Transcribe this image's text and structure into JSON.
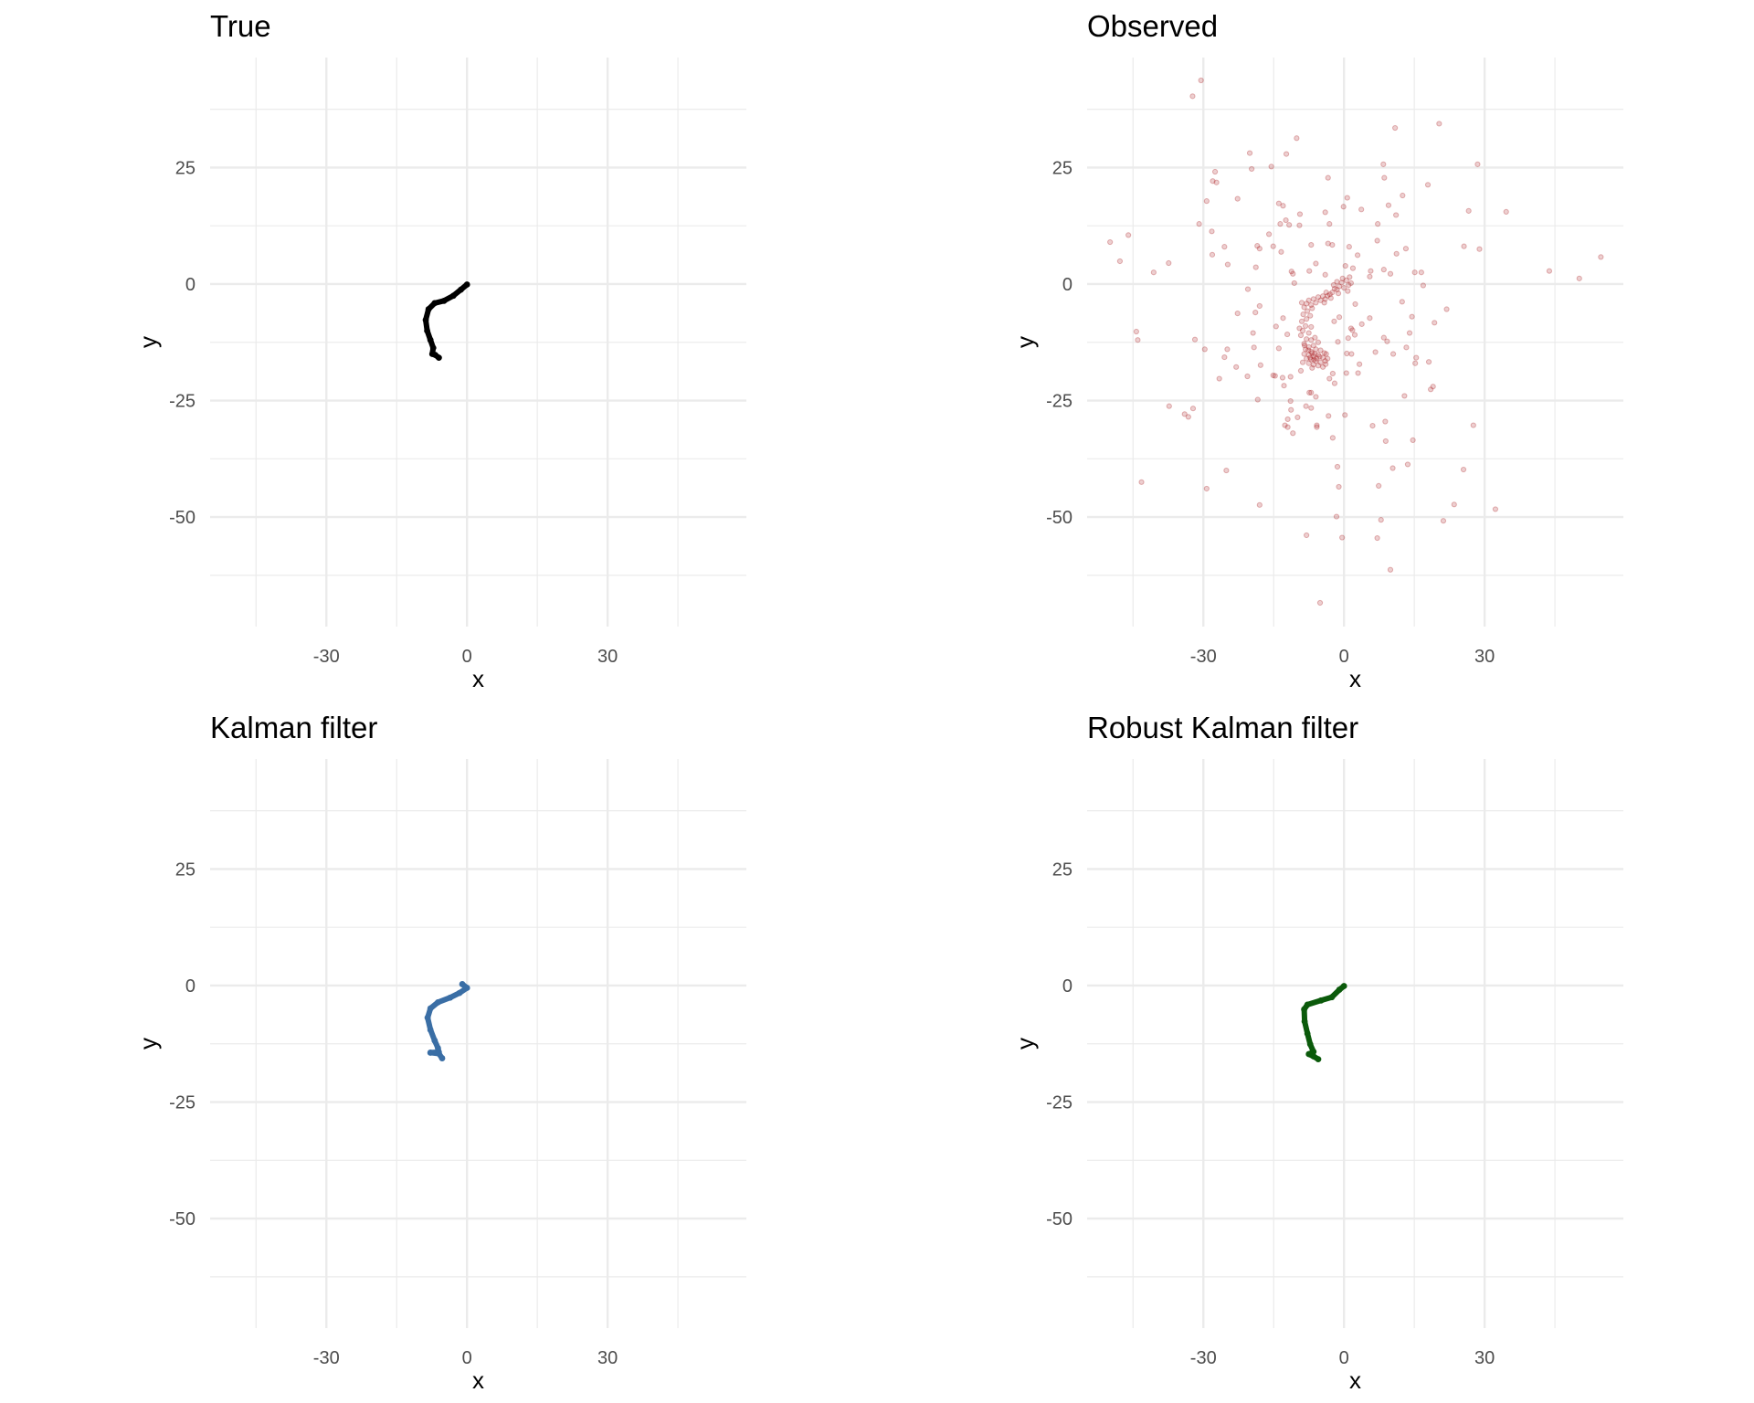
{
  "chart_data": [
    {
      "type": "line",
      "title": "True",
      "xlabel": "x",
      "ylabel": "y",
      "xlim": [
        -54.8,
        59.6
      ],
      "ylim": [
        -73.5,
        48.6
      ],
      "xticks": [
        -30,
        0,
        30
      ],
      "yticks": [
        -50,
        -25,
        0,
        25
      ],
      "grid": true,
      "color": "#000000",
      "points": [
        [
          0,
          -0.1
        ],
        [
          -1.3,
          -1.2
        ],
        [
          -2.9,
          -2.5
        ],
        [
          -4.9,
          -3.6
        ],
        [
          -6.9,
          -4.1
        ],
        [
          -8.2,
          -5.4
        ],
        [
          -8.8,
          -7.7
        ],
        [
          -8.5,
          -10
        ],
        [
          -7.8,
          -12
        ],
        [
          -7.2,
          -13.7
        ],
        [
          -7.4,
          -15
        ],
        [
          -6.8,
          -15.2
        ],
        [
          -6,
          -15.8
        ]
      ]
    },
    {
      "type": "scatter",
      "title": "Observed",
      "xlabel": "x",
      "ylabel": "y",
      "xlim": [
        -54.8,
        59.6
      ],
      "ylim": [
        -73.5,
        48.6
      ],
      "xticks": [
        -30,
        0,
        30
      ],
      "yticks": [
        -50,
        -25,
        0,
        25
      ],
      "grid": true,
      "color": "#a50f15",
      "opacity": 0.2,
      "points": [
        [
          -30.5,
          43.7
        ],
        [
          -32.3,
          40.3
        ],
        [
          20.3,
          34.4
        ],
        [
          10.9,
          33.5
        ],
        [
          -10.1,
          31.3
        ],
        [
          -20.1,
          28.1
        ],
        [
          -12.3,
          27.9
        ],
        [
          8.4,
          25.7
        ],
        [
          28.5,
          25.7
        ],
        [
          -19.7,
          24.7
        ],
        [
          -15.5,
          25.2
        ],
        [
          -27.5,
          24.1
        ],
        [
          -28,
          22.1
        ],
        [
          -27.2,
          21.8
        ],
        [
          -3.4,
          22.8
        ],
        [
          8.6,
          22.8
        ],
        [
          17.9,
          21.3
        ],
        [
          12.5,
          19
        ],
        [
          -29.3,
          17.8
        ],
        [
          -22.7,
          18.3
        ],
        [
          0.7,
          18.5
        ],
        [
          -0.1,
          16.6
        ],
        [
          -13.9,
          17.3
        ],
        [
          -13,
          16.8
        ],
        [
          9.5,
          16.9
        ],
        [
          3.7,
          16
        ],
        [
          26.6,
          15.7
        ],
        [
          34.6,
          15.5
        ],
        [
          -4,
          15.4
        ],
        [
          -9.4,
          15
        ],
        [
          11.1,
          14.8
        ],
        [
          -30.9,
          12.9
        ],
        [
          -12.4,
          13.7
        ],
        [
          -13.6,
          12.9
        ],
        [
          -11.7,
          12.7
        ],
        [
          -9.5,
          12.6
        ],
        [
          -3.1,
          12.9
        ],
        [
          7.2,
          12.9
        ],
        [
          -28.2,
          11.3
        ],
        [
          -46,
          10.5
        ],
        [
          -16,
          10.7
        ],
        [
          -49.9,
          9
        ],
        [
          7.1,
          9.3
        ],
        [
          -3.4,
          8.7
        ],
        [
          -2.5,
          8.4
        ],
        [
          -7,
          8.4
        ],
        [
          -18.5,
          8.2
        ],
        [
          -18,
          7.6
        ],
        [
          -15.1,
          8.1
        ],
        [
          -25.5,
          8
        ],
        [
          1.1,
          8
        ],
        [
          13.2,
          7.6
        ],
        [
          25.6,
          8.1
        ],
        [
          28.9,
          7.5
        ],
        [
          -13.4,
          6.9
        ],
        [
          -28.1,
          6.3
        ],
        [
          2.9,
          6.2
        ],
        [
          11.2,
          6.5
        ],
        [
          -47.8,
          4.9
        ],
        [
          -37.4,
          4.5
        ],
        [
          -6,
          4.4
        ],
        [
          -24.8,
          4.2
        ],
        [
          -18.8,
          3.6
        ],
        [
          0.3,
          3.9
        ],
        [
          1.9,
          3.4
        ],
        [
          43.8,
          2.8
        ],
        [
          -40.6,
          2.5
        ],
        [
          -11.2,
          2.7
        ],
        [
          -10.9,
          2.2
        ],
        [
          -7.4,
          2.8
        ],
        [
          -4,
          2
        ],
        [
          5.7,
          2.8
        ],
        [
          5.5,
          1.6
        ],
        [
          8.5,
          3.1
        ],
        [
          9.9,
          2.2
        ],
        [
          15.1,
          2.5
        ],
        [
          16.5,
          2.5
        ],
        [
          50.2,
          1.2
        ],
        [
          54.8,
          5.8
        ],
        [
          -10.6,
          0.2
        ],
        [
          16.9,
          -0.3
        ],
        [
          -20.5,
          -1.1
        ],
        [
          2.4,
          -4.3
        ],
        [
          12.4,
          -3.8
        ],
        [
          21.9,
          -5.4
        ],
        [
          -22.7,
          -6.3
        ],
        [
          -18.9,
          -6.1
        ],
        [
          -18,
          -4.7
        ],
        [
          3.8,
          -8.6
        ],
        [
          5.5,
          -7.3
        ],
        [
          14.5,
          -7
        ],
        [
          19.3,
          -8.3
        ],
        [
          -14.5,
          -9.1
        ],
        [
          -13,
          -7.3
        ],
        [
          -1,
          -7.1
        ],
        [
          -2.1,
          -8
        ],
        [
          1.5,
          -9.5
        ],
        [
          1.8,
          -9.9
        ],
        [
          -44.3,
          -10.2
        ],
        [
          -19.4,
          -10.5
        ],
        [
          -44,
          -12
        ],
        [
          -31.8,
          -11.9
        ],
        [
          -12.1,
          -10.8
        ],
        [
          2.3,
          -10.9
        ],
        [
          0.9,
          -11.6
        ],
        [
          14,
          -10.5
        ],
        [
          9.2,
          -12.3
        ],
        [
          8.5,
          -11.5
        ],
        [
          -1.3,
          -12.4
        ],
        [
          -29.7,
          -14
        ],
        [
          -24.9,
          -14
        ],
        [
          -19.2,
          -13.6
        ],
        [
          -13.9,
          -13.8
        ],
        [
          13.3,
          -13.6
        ],
        [
          6.7,
          -14.6
        ],
        [
          0.6,
          -14.9
        ],
        [
          1.6,
          -15
        ],
        [
          10.5,
          -15
        ],
        [
          -25.5,
          -15.7
        ],
        [
          15.4,
          -15.8
        ],
        [
          15.2,
          -17
        ],
        [
          18.1,
          -16.7
        ],
        [
          3.3,
          -17.2
        ],
        [
          -17.8,
          -17.4
        ],
        [
          -23,
          -17.8
        ],
        [
          -9.2,
          -18.6
        ],
        [
          0.5,
          -19.1
        ],
        [
          3,
          -19.1
        ],
        [
          -2.4,
          -19.2
        ],
        [
          -20.6,
          -19.8
        ],
        [
          -15.1,
          -19.6
        ],
        [
          -14.7,
          -19.7
        ],
        [
          -11.4,
          -19.9
        ],
        [
          -13.1,
          -20.1
        ],
        [
          -3.1,
          -20.3
        ],
        [
          -26.6,
          -20.3
        ],
        [
          -2,
          -21.3
        ],
        [
          -12.8,
          -21.8
        ],
        [
          19,
          -22
        ],
        [
          18.5,
          -22.6
        ],
        [
          -7.4,
          -23.3
        ],
        [
          -7,
          -23.3
        ],
        [
          -6,
          -24.2
        ],
        [
          12.9,
          -24
        ],
        [
          -18.4,
          -24.8
        ],
        [
          -11.4,
          -25.1
        ],
        [
          -37.3,
          -26.2
        ],
        [
          -32.2,
          -26.7
        ],
        [
          -8.1,
          -26.2
        ],
        [
          -7,
          -26.6
        ],
        [
          -11.3,
          -27
        ],
        [
          -34,
          -27.9
        ],
        [
          -33.2,
          -28.5
        ],
        [
          -9.9,
          -28.6
        ],
        [
          -12,
          -29
        ],
        [
          -3.3,
          -28.3
        ],
        [
          0.2,
          -28.1
        ],
        [
          8.8,
          -29.5
        ],
        [
          -12.6,
          -30.3
        ],
        [
          -12,
          -30.7
        ],
        [
          -5.8,
          -30.3
        ],
        [
          -5.8,
          -30.7
        ],
        [
          6.1,
          -30.4
        ],
        [
          27.6,
          -30.3
        ],
        [
          -10.9,
          -32
        ],
        [
          -2.4,
          -33
        ],
        [
          8.9,
          -33.7
        ],
        [
          14.7,
          -33.5
        ],
        [
          13.6,
          -38.7
        ],
        [
          -1.4,
          -39.2
        ],
        [
          10.4,
          -39.5
        ],
        [
          -25.1,
          -40
        ],
        [
          25.5,
          -39.8
        ],
        [
          -43.2,
          -42.5
        ],
        [
          7.4,
          -43.3
        ],
        [
          -1.1,
          -43.5
        ],
        [
          -29.3,
          -43.9
        ],
        [
          23.5,
          -47.3
        ],
        [
          -18,
          -47.4
        ],
        [
          32.3,
          -48.3
        ],
        [
          -1.6,
          -49.9
        ],
        [
          7.9,
          -50.6
        ],
        [
          21.2,
          -50.8
        ],
        [
          -8,
          -53.9
        ],
        [
          -0.4,
          -54.4
        ],
        [
          7.1,
          -54.5
        ],
        [
          9.9,
          -61.3
        ],
        [
          -5.1,
          -68.4
        ],
        [
          0.5,
          0.8
        ],
        [
          1.2,
          1.5
        ],
        [
          -0.5,
          0.3
        ],
        [
          0,
          -0.8
        ],
        [
          1,
          -0.2
        ],
        [
          -1,
          -0.5
        ],
        [
          -0.3,
          1.2
        ],
        [
          1.5,
          0.2
        ],
        [
          -1.5,
          -1.2
        ],
        [
          -2,
          -1
        ],
        [
          -1.2,
          -2
        ],
        [
          -2.5,
          -1.8
        ],
        [
          -3,
          -2.2
        ],
        [
          -2.8,
          -3
        ],
        [
          -3.5,
          -2.5
        ],
        [
          -4,
          -3.2
        ],
        [
          -4.5,
          -2.6
        ],
        [
          -4.2,
          -4
        ],
        [
          -5,
          -3.5
        ],
        [
          -5.5,
          -2.8
        ],
        [
          -6,
          -4
        ],
        [
          -6.5,
          -3.2
        ],
        [
          -7,
          -4.5
        ],
        [
          -7.5,
          -3.5
        ],
        [
          -8,
          -4.2
        ],
        [
          -8.5,
          -5
        ],
        [
          -9,
          -4
        ],
        [
          -7.8,
          -5.8
        ],
        [
          -8.7,
          -6.5
        ],
        [
          -8,
          -7.5
        ],
        [
          -9,
          -8
        ],
        [
          -8.2,
          -9
        ],
        [
          -8.8,
          -10
        ],
        [
          -7.5,
          -10.5
        ],
        [
          -9.2,
          -11
        ],
        [
          -8,
          -11.8
        ],
        [
          -7,
          -12
        ],
        [
          -8.5,
          -12.8
        ],
        [
          -6.2,
          -11.5
        ],
        [
          -5.5,
          -12.5
        ],
        [
          -7.5,
          -13.5
        ],
        [
          -6.5,
          -13.2
        ],
        [
          -8.2,
          -14
        ],
        [
          -7,
          -14.5
        ],
        [
          -6,
          -14
        ],
        [
          -5,
          -14.2
        ],
        [
          -4.2,
          -14.8
        ],
        [
          -8.5,
          -15
        ],
        [
          -7.5,
          -15.2
        ],
        [
          -6.5,
          -15.5
        ],
        [
          -5.5,
          -15.2
        ],
        [
          -4.5,
          -15.8
        ],
        [
          -3.8,
          -15
        ],
        [
          -8,
          -16
        ],
        [
          -7,
          -16.2
        ],
        [
          -6,
          -16.5
        ],
        [
          -5,
          -16.8
        ],
        [
          -4,
          -16.5
        ],
        [
          -7.5,
          -17
        ],
        [
          -6.5,
          -17.3
        ],
        [
          -5.5,
          -17.5
        ],
        [
          -8.8,
          -16.8
        ],
        [
          -4.5,
          -17.8
        ],
        [
          -6.8,
          -18
        ],
        [
          -3.5,
          -16
        ],
        [
          -7.2,
          -15.8
        ],
        [
          -6.2,
          -15
        ],
        [
          -5.8,
          -16
        ],
        [
          -8.4,
          -13.2
        ],
        [
          -3.9,
          -17.2
        ],
        [
          -1.5,
          0.5
        ],
        [
          0.8,
          -1.5
        ],
        [
          -2.2,
          -0.2
        ],
        [
          -3.8,
          -1.8
        ],
        [
          -6.8,
          -5.2
        ],
        [
          -7.2,
          -6.8
        ],
        [
          -7,
          -9.2
        ],
        [
          -9.5,
          -9.5
        ],
        [
          -6.8,
          -14.8
        ],
        [
          -5.2,
          -15.6
        ],
        [
          -6.4,
          -16.2
        ],
        [
          -7.6,
          -14.2
        ]
      ]
    },
    {
      "type": "line",
      "title": "Kalman filter",
      "xlabel": "x",
      "ylabel": "y",
      "xlim": [
        -54.8,
        59.6
      ],
      "ylim": [
        -73.5,
        48.6
      ],
      "xticks": [
        -30,
        0,
        30
      ],
      "yticks": [
        -50,
        -25,
        0,
        25
      ],
      "grid": true,
      "color": "#3a6ea5",
      "points": [
        [
          -1,
          0.3
        ],
        [
          0,
          -0.5
        ],
        [
          -1.6,
          -1.6
        ],
        [
          -3.6,
          -2.6
        ],
        [
          -6.2,
          -3.6
        ],
        [
          -7.8,
          -4.9
        ],
        [
          -8.4,
          -6.9
        ],
        [
          -7.8,
          -9.5
        ],
        [
          -6.9,
          -11.8
        ],
        [
          -6.2,
          -13.4
        ],
        [
          -6,
          -14.3
        ],
        [
          -7.8,
          -14.4
        ],
        [
          -6,
          -14.6
        ],
        [
          -5.3,
          -15.6
        ]
      ]
    },
    {
      "type": "line",
      "title": "Robust Kalman filter",
      "xlabel": "x",
      "ylabel": "y",
      "xlim": [
        -54.8,
        59.6
      ],
      "ylim": [
        -73.5,
        48.6
      ],
      "xticks": [
        -30,
        0,
        30
      ],
      "yticks": [
        -50,
        -25,
        0,
        25
      ],
      "grid": true,
      "color": "#0b5a0b",
      "points": [
        [
          0,
          -0.1
        ],
        [
          -1,
          -0.9
        ],
        [
          -2.6,
          -2.5
        ],
        [
          -4.9,
          -3.2
        ],
        [
          -7.8,
          -4.1
        ],
        [
          -8.5,
          -5.1
        ],
        [
          -8.4,
          -7.7
        ],
        [
          -7.8,
          -10.3
        ],
        [
          -7.2,
          -12.6
        ],
        [
          -6.5,
          -14.2
        ],
        [
          -7.5,
          -14.7
        ],
        [
          -6.5,
          -15.2
        ],
        [
          -5.5,
          -15.8
        ]
      ]
    }
  ]
}
